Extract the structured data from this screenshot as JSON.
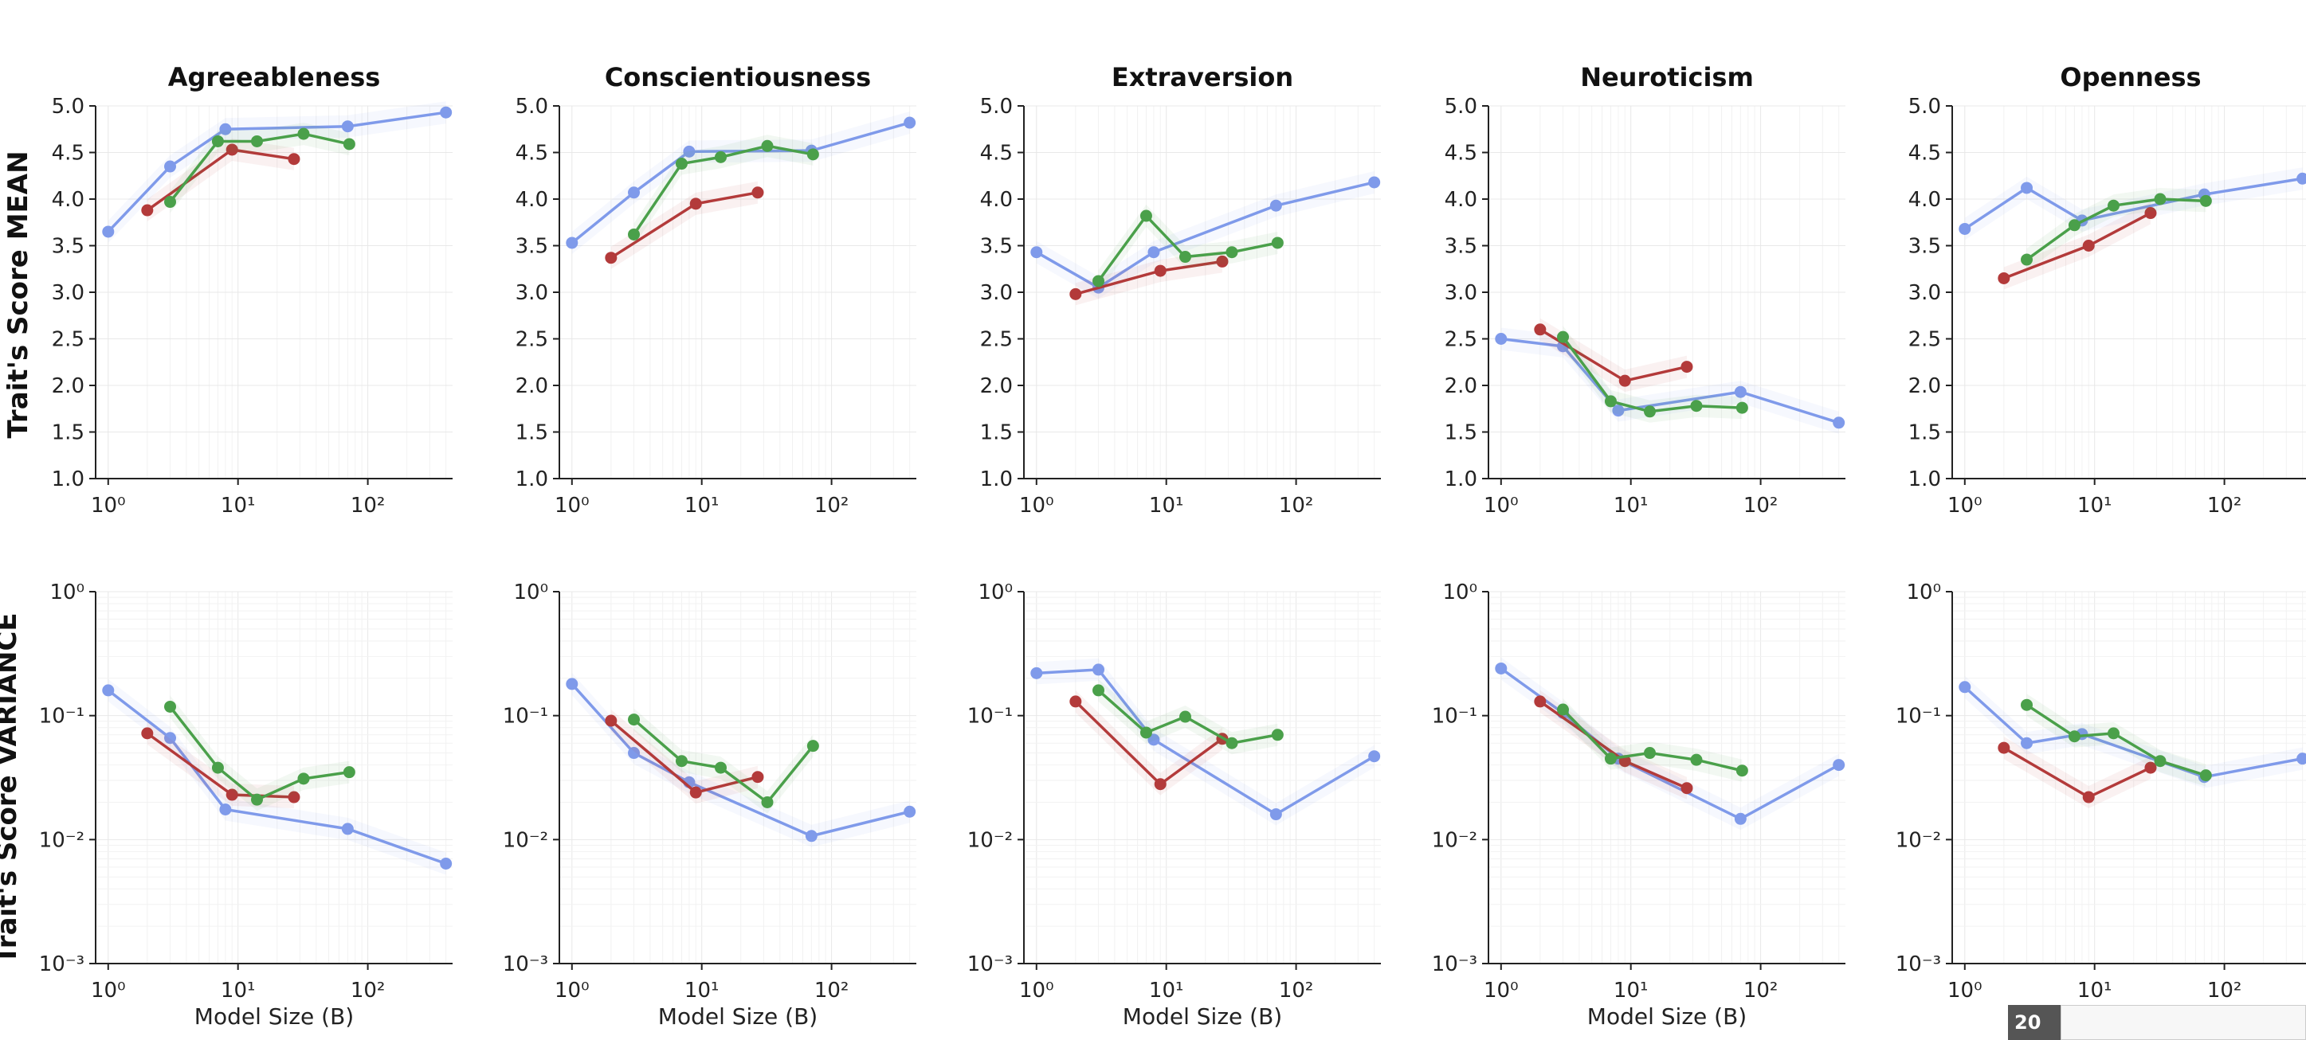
{
  "row_labels": [
    "Trait's Score MEAN",
    "Trait's Score VARIANCE"
  ],
  "x_axis_label": "Model Size (B)",
  "series_colors": [
    "#7f9aea",
    "#b33a3a",
    "#4aa04a"
  ],
  "thumbnail_badge": "20",
  "chart_data": [
    {
      "type": "line",
      "title": "Agreeableness",
      "row": "mean",
      "yscale": "linear",
      "ylim": [
        1.0,
        5.0
      ],
      "xscale": "log",
      "xlim": [
        0.8,
        450
      ],
      "series": [
        {
          "color": "#7f9aea",
          "x": [
            1,
            3,
            8,
            70,
            400
          ],
          "values": [
            3.65,
            4.35,
            4.75,
            4.78,
            4.93
          ]
        },
        {
          "color": "#b33a3a",
          "x": [
            2,
            9,
            27
          ],
          "values": [
            3.88,
            4.53,
            4.43
          ]
        },
        {
          "color": "#4aa04a",
          "x": [
            3,
            7,
            14,
            32,
            72
          ],
          "values": [
            3.97,
            4.62,
            4.62,
            4.7,
            4.59
          ]
        }
      ]
    },
    {
      "type": "line",
      "title": "Conscientiousness",
      "row": "mean",
      "yscale": "linear",
      "ylim": [
        1.0,
        5.0
      ],
      "xscale": "log",
      "xlim": [
        0.8,
        450
      ],
      "series": [
        {
          "color": "#7f9aea",
          "x": [
            1,
            3,
            8,
            70,
            400
          ],
          "values": [
            3.53,
            4.07,
            4.51,
            4.52,
            4.82
          ]
        },
        {
          "color": "#b33a3a",
          "x": [
            2,
            9,
            27
          ],
          "values": [
            3.37,
            3.95,
            4.07
          ]
        },
        {
          "color": "#4aa04a",
          "x": [
            3,
            7,
            14,
            32,
            72
          ],
          "values": [
            3.62,
            4.38,
            4.45,
            4.57,
            4.48
          ]
        }
      ]
    },
    {
      "type": "line",
      "title": "Extraversion",
      "row": "mean",
      "yscale": "linear",
      "ylim": [
        1.0,
        5.0
      ],
      "xscale": "log",
      "xlim": [
        0.8,
        450
      ],
      "series": [
        {
          "color": "#7f9aea",
          "x": [
            1,
            3,
            8,
            70,
            400
          ],
          "values": [
            3.43,
            3.05,
            3.43,
            3.93,
            4.18
          ]
        },
        {
          "color": "#b33a3a",
          "x": [
            2,
            9,
            27
          ],
          "values": [
            2.98,
            3.23,
            3.33
          ]
        },
        {
          "color": "#4aa04a",
          "x": [
            3,
            7,
            14,
            32,
            72
          ],
          "values": [
            3.12,
            3.82,
            3.38,
            3.43,
            3.53
          ]
        }
      ]
    },
    {
      "type": "line",
      "title": "Neuroticism",
      "row": "mean",
      "yscale": "linear",
      "ylim": [
        1.0,
        5.0
      ],
      "xscale": "log",
      "xlim": [
        0.8,
        450
      ],
      "series": [
        {
          "color": "#7f9aea",
          "x": [
            1,
            3,
            8,
            70,
            400
          ],
          "values": [
            2.5,
            2.42,
            1.73,
            1.93,
            1.6
          ]
        },
        {
          "color": "#b33a3a",
          "x": [
            2,
            9,
            27
          ],
          "values": [
            2.6,
            2.05,
            2.2
          ]
        },
        {
          "color": "#4aa04a",
          "x": [
            3,
            7,
            14,
            32,
            72
          ],
          "values": [
            2.52,
            1.83,
            1.72,
            1.78,
            1.76
          ]
        }
      ]
    },
    {
      "type": "line",
      "title": "Openness",
      "row": "mean",
      "yscale": "linear",
      "ylim": [
        1.0,
        5.0
      ],
      "xscale": "log",
      "xlim": [
        0.8,
        450
      ],
      "series": [
        {
          "color": "#7f9aea",
          "x": [
            1,
            3,
            8,
            70,
            400
          ],
          "values": [
            3.68,
            4.12,
            3.77,
            4.05,
            4.22
          ]
        },
        {
          "color": "#b33a3a",
          "x": [
            2,
            9,
            27
          ],
          "values": [
            3.15,
            3.5,
            3.85
          ]
        },
        {
          "color": "#4aa04a",
          "x": [
            3,
            7,
            14,
            32,
            72
          ],
          "values": [
            3.35,
            3.72,
            3.93,
            4.0,
            3.98
          ]
        }
      ]
    },
    {
      "type": "line",
      "title": "",
      "row": "variance",
      "yscale": "log",
      "ylim": [
        0.001,
        1
      ],
      "xscale": "log",
      "xlim": [
        0.8,
        450
      ],
      "series": [
        {
          "color": "#7f9aea",
          "x": [
            1,
            3,
            8,
            70,
            400
          ],
          "values": [
            0.16,
            0.066,
            0.0175,
            0.0122,
            0.0064
          ]
        },
        {
          "color": "#b33a3a",
          "x": [
            2,
            9,
            27
          ],
          "values": [
            0.072,
            0.023,
            0.022
          ]
        },
        {
          "color": "#4aa04a",
          "x": [
            3,
            7,
            14,
            32,
            72
          ],
          "values": [
            0.118,
            0.038,
            0.021,
            0.031,
            0.035
          ]
        }
      ]
    },
    {
      "type": "line",
      "title": "",
      "row": "variance",
      "yscale": "log",
      "ylim": [
        0.001,
        1
      ],
      "xscale": "log",
      "xlim": [
        0.8,
        450
      ],
      "series": [
        {
          "color": "#7f9aea",
          "x": [
            1,
            3,
            8,
            70,
            400
          ],
          "values": [
            0.18,
            0.05,
            0.029,
            0.0107,
            0.0168
          ]
        },
        {
          "color": "#b33a3a",
          "x": [
            2,
            9,
            27
          ],
          "values": [
            0.091,
            0.024,
            0.032
          ]
        },
        {
          "color": "#4aa04a",
          "x": [
            3,
            7,
            14,
            32,
            72
          ],
          "values": [
            0.093,
            0.043,
            0.038,
            0.02,
            0.057
          ]
        }
      ]
    },
    {
      "type": "line",
      "title": "",
      "row": "variance",
      "yscale": "log",
      "ylim": [
        0.001,
        1
      ],
      "xscale": "log",
      "xlim": [
        0.8,
        450
      ],
      "series": [
        {
          "color": "#7f9aea",
          "x": [
            1,
            3,
            8,
            70,
            400
          ],
          "values": [
            0.22,
            0.235,
            0.064,
            0.016,
            0.047
          ]
        },
        {
          "color": "#b33a3a",
          "x": [
            2,
            9,
            27
          ],
          "values": [
            0.13,
            0.028,
            0.065
          ]
        },
        {
          "color": "#4aa04a",
          "x": [
            3,
            7,
            14,
            32,
            72
          ],
          "values": [
            0.16,
            0.073,
            0.098,
            0.06,
            0.07
          ]
        }
      ]
    },
    {
      "type": "line",
      "title": "",
      "row": "variance",
      "yscale": "log",
      "ylim": [
        0.001,
        1
      ],
      "xscale": "log",
      "xlim": [
        0.8,
        450
      ],
      "series": [
        {
          "color": "#7f9aea",
          "x": [
            1,
            3,
            8,
            70,
            400
          ],
          "values": [
            0.24,
            0.105,
            0.045,
            0.0147,
            0.04
          ]
        },
        {
          "color": "#b33a3a",
          "x": [
            2,
            9,
            27
          ],
          "values": [
            0.13,
            0.043,
            0.026
          ]
        },
        {
          "color": "#4aa04a",
          "x": [
            3,
            7,
            14,
            32,
            72
          ],
          "values": [
            0.112,
            0.045,
            0.05,
            0.044,
            0.036
          ]
        }
      ]
    },
    {
      "type": "line",
      "title": "",
      "row": "variance",
      "yscale": "log",
      "ylim": [
        0.001,
        1
      ],
      "xscale": "log",
      "xlim": [
        0.8,
        450
      ],
      "series": [
        {
          "color": "#7f9aea",
          "x": [
            1,
            3,
            8,
            70,
            400
          ],
          "values": [
            0.17,
            0.06,
            0.071,
            0.032,
            0.045
          ]
        },
        {
          "color": "#b33a3a",
          "x": [
            2,
            9,
            27
          ],
          "values": [
            0.055,
            0.022,
            0.038
          ]
        },
        {
          "color": "#4aa04a",
          "x": [
            3,
            7,
            14,
            32,
            72
          ],
          "values": [
            0.122,
            0.068,
            0.072,
            0.043,
            0.033
          ]
        }
      ]
    }
  ]
}
